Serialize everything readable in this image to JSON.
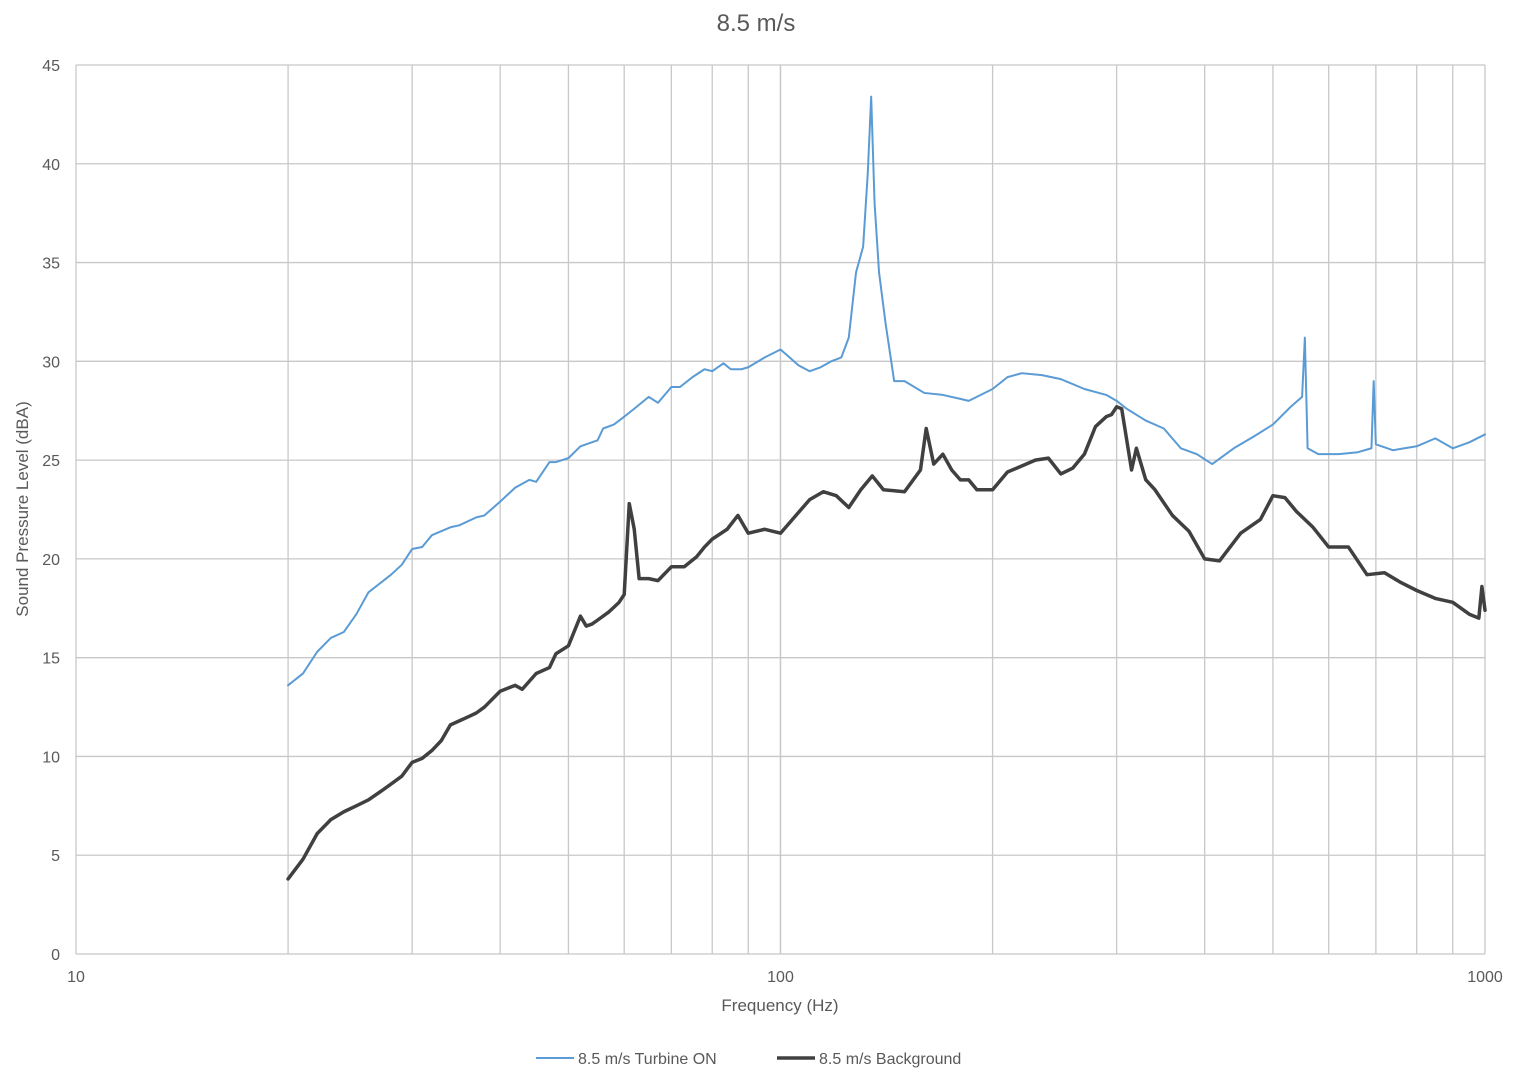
{
  "chart_data": {
    "type": "line",
    "title": "8.5 m/s",
    "xlabel": "Frequency (Hz)",
    "ylabel": "Sound Pressure Level (dBA)",
    "x_scale": "log",
    "xlim": [
      10,
      1000
    ],
    "ylim": [
      0,
      45
    ],
    "x_tick_labels": [
      "10",
      "100",
      "1000"
    ],
    "y_ticks": [
      0,
      5,
      10,
      15,
      20,
      25,
      30,
      35,
      40,
      45
    ],
    "grid": true,
    "legend_position": "bottom",
    "series": [
      {
        "name": "8.5 m/s Turbine ON",
        "color": "#5b9bd5",
        "x": [
          20,
          21,
          22,
          23,
          24,
          25,
          26,
          28,
          29,
          30,
          31,
          32,
          34,
          35,
          37,
          38,
          40,
          42,
          44,
          45,
          47,
          48,
          50,
          52,
          55,
          56,
          58,
          60,
          62,
          65,
          67,
          70,
          72,
          75,
          78,
          80,
          83,
          85,
          88,
          90,
          95,
          100,
          103,
          106,
          110,
          114,
          118,
          122,
          125,
          128,
          131,
          133,
          134.5,
          136,
          138,
          141,
          145,
          150,
          160,
          170,
          180,
          185,
          200,
          210,
          220,
          235,
          250,
          270,
          290,
          300,
          310,
          330,
          350,
          370,
          390,
          410,
          440,
          470,
          500,
          530,
          550,
          555,
          560,
          580,
          620,
          660,
          690,
          695,
          700,
          740,
          800,
          850,
          900,
          950,
          1000
        ],
        "y": [
          13.6,
          14.2,
          15.3,
          16.0,
          16.3,
          17.2,
          18.3,
          19.2,
          19.7,
          20.5,
          20.6,
          21.2,
          21.6,
          21.7,
          22.1,
          22.2,
          22.9,
          23.6,
          24.0,
          23.9,
          24.9,
          24.9,
          25.1,
          25.7,
          26.0,
          26.6,
          26.8,
          27.2,
          27.6,
          28.2,
          27.9,
          28.7,
          28.7,
          29.2,
          29.6,
          29.5,
          29.9,
          29.6,
          29.6,
          29.7,
          30.2,
          30.6,
          30.2,
          29.8,
          29.5,
          29.7,
          30.0,
          30.2,
          31.2,
          34.5,
          35.8,
          39.5,
          43.4,
          38.0,
          34.5,
          31.9,
          29.0,
          29.0,
          28.4,
          28.3,
          28.1,
          28.0,
          28.6,
          29.2,
          29.4,
          29.3,
          29.1,
          28.6,
          28.3,
          28.0,
          27.6,
          27.0,
          26.6,
          25.6,
          25.3,
          24.8,
          25.6,
          26.2,
          26.8,
          27.7,
          28.2,
          31.2,
          25.6,
          25.3,
          25.3,
          25.4,
          25.6,
          29.0,
          25.8,
          25.5,
          25.7,
          26.1,
          25.6,
          25.9,
          26.3
        ]
      },
      {
        "name": "8.5 m/s Background",
        "color": "#404040",
        "x": [
          20,
          21,
          22,
          23,
          24,
          25,
          26,
          27,
          28,
          29,
          30,
          31,
          32,
          33,
          34,
          35,
          36,
          37,
          38,
          40,
          42,
          43,
          45,
          47,
          48,
          50,
          52,
          53,
          54,
          55,
          57,
          59,
          60,
          61,
          62,
          63,
          65,
          67,
          70,
          73,
          76,
          78,
          80,
          84,
          87,
          90,
          95,
          100,
          104,
          110,
          115,
          120,
          125,
          130,
          135,
          140,
          150,
          158,
          161,
          165,
          170,
          175,
          180,
          185,
          190,
          200,
          210,
          220,
          230,
          240,
          250,
          260,
          270,
          280,
          290,
          295,
          300,
          305,
          315,
          320,
          330,
          340,
          360,
          380,
          400,
          420,
          450,
          480,
          500,
          520,
          540,
          570,
          600,
          640,
          680,
          720,
          760,
          800,
          850,
          900,
          950,
          980,
          990,
          1000
        ],
        "y": [
          3.8,
          4.8,
          6.1,
          6.8,
          7.2,
          7.5,
          7.8,
          8.2,
          8.6,
          9.0,
          9.7,
          9.9,
          10.3,
          10.8,
          11.6,
          11.8,
          12.0,
          12.2,
          12.5,
          13.3,
          13.6,
          13.4,
          14.2,
          14.5,
          15.2,
          15.6,
          17.1,
          16.6,
          16.7,
          16.9,
          17.3,
          17.8,
          18.2,
          22.8,
          21.5,
          19.0,
          19.0,
          18.9,
          19.6,
          19.6,
          20.1,
          20.6,
          21.0,
          21.5,
          22.2,
          21.3,
          21.5,
          21.3,
          22.0,
          23.0,
          23.4,
          23.2,
          22.6,
          23.5,
          24.2,
          23.5,
          23.4,
          24.5,
          26.6,
          24.8,
          25.3,
          24.5,
          24.0,
          24.0,
          23.5,
          23.5,
          24.4,
          24.7,
          25.0,
          25.1,
          24.3,
          24.6,
          25.3,
          26.7,
          27.2,
          27.3,
          27.7,
          27.6,
          24.5,
          25.6,
          24.0,
          23.5,
          22.2,
          21.4,
          20.0,
          19.9,
          21.3,
          22.0,
          23.2,
          23.1,
          22.4,
          21.6,
          20.6,
          20.6,
          19.2,
          19.3,
          18.8,
          18.4,
          18.0,
          17.8,
          17.2,
          17.0,
          18.6,
          17.4
        ]
      }
    ]
  }
}
